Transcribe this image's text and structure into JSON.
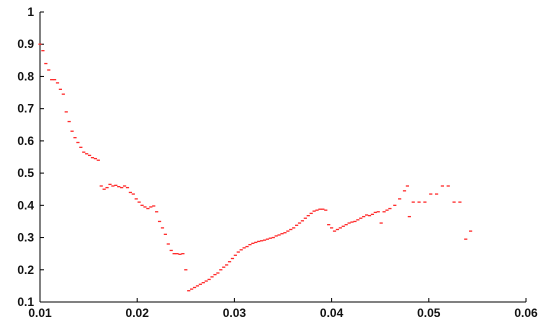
{
  "chart_data": {
    "type": "scatter",
    "title": "",
    "xlabel": "",
    "ylabel": "",
    "xlim": [
      0.01,
      0.06
    ],
    "ylim": [
      0.1,
      1.0
    ],
    "x_ticks": [
      0.01,
      0.02,
      0.03,
      0.04,
      0.05,
      0.06
    ],
    "x_tick_labels": [
      "0.01",
      "0.02",
      "0.03",
      "0.04",
      "0.05",
      "0.06"
    ],
    "y_ticks": [
      0.1,
      0.2,
      0.3,
      0.4,
      0.5,
      0.6,
      0.7,
      0.8,
      0.9,
      1.0
    ],
    "y_tick_labels": [
      "0.1",
      "0.2",
      "0.3",
      "0.4",
      "0.5",
      "0.6",
      "0.7",
      "0.8",
      "0.9",
      "1"
    ],
    "grid": false,
    "legend": "none",
    "series": [
      {
        "color": "#ff2a2a",
        "marker": "dash",
        "points": [
          [
            0.01,
            0.9
          ],
          [
            0.0103,
            0.88
          ],
          [
            0.0106,
            0.84
          ],
          [
            0.0109,
            0.82
          ],
          [
            0.0112,
            0.79
          ],
          [
            0.0115,
            0.79
          ],
          [
            0.0118,
            0.78
          ],
          [
            0.0121,
            0.76
          ],
          [
            0.0124,
            0.745
          ],
          [
            0.0127,
            0.69
          ],
          [
            0.013,
            0.66
          ],
          [
            0.0133,
            0.63
          ],
          [
            0.0136,
            0.61
          ],
          [
            0.0139,
            0.595
          ],
          [
            0.0142,
            0.58
          ],
          [
            0.0145,
            0.565
          ],
          [
            0.0148,
            0.56
          ],
          [
            0.0151,
            0.555
          ],
          [
            0.0154,
            0.548
          ],
          [
            0.0157,
            0.545
          ],
          [
            0.016,
            0.54
          ],
          [
            0.0163,
            0.46
          ],
          [
            0.0166,
            0.45
          ],
          [
            0.0169,
            0.455
          ],
          [
            0.0172,
            0.465
          ],
          [
            0.0175,
            0.46
          ],
          [
            0.0178,
            0.462
          ],
          [
            0.0181,
            0.458
          ],
          [
            0.0184,
            0.455
          ],
          [
            0.0187,
            0.46
          ],
          [
            0.019,
            0.455
          ],
          [
            0.0193,
            0.44
          ],
          [
            0.0196,
            0.435
          ],
          [
            0.0199,
            0.42
          ],
          [
            0.0202,
            0.41
          ],
          [
            0.0205,
            0.4
          ],
          [
            0.0208,
            0.395
          ],
          [
            0.0211,
            0.39
          ],
          [
            0.0214,
            0.395
          ],
          [
            0.0217,
            0.398
          ],
          [
            0.022,
            0.38
          ],
          [
            0.0223,
            0.35
          ],
          [
            0.0226,
            0.33
          ],
          [
            0.0229,
            0.31
          ],
          [
            0.0232,
            0.28
          ],
          [
            0.0235,
            0.26
          ],
          [
            0.0238,
            0.25
          ],
          [
            0.0241,
            0.25
          ],
          [
            0.0244,
            0.248
          ],
          [
            0.0247,
            0.25
          ],
          [
            0.025,
            0.2
          ],
          [
            0.0253,
            0.135
          ],
          [
            0.0256,
            0.14
          ],
          [
            0.0259,
            0.145
          ],
          [
            0.0262,
            0.15
          ],
          [
            0.0265,
            0.155
          ],
          [
            0.0268,
            0.16
          ],
          [
            0.0271,
            0.165
          ],
          [
            0.0274,
            0.17
          ],
          [
            0.0277,
            0.178
          ],
          [
            0.028,
            0.185
          ],
          [
            0.0283,
            0.19
          ],
          [
            0.0286,
            0.2
          ],
          [
            0.0289,
            0.208
          ],
          [
            0.0292,
            0.215
          ],
          [
            0.0295,
            0.225
          ],
          [
            0.0298,
            0.235
          ],
          [
            0.0301,
            0.245
          ],
          [
            0.0304,
            0.255
          ],
          [
            0.0307,
            0.262
          ],
          [
            0.031,
            0.268
          ],
          [
            0.0313,
            0.272
          ],
          [
            0.0316,
            0.278
          ],
          [
            0.0319,
            0.282
          ],
          [
            0.0322,
            0.285
          ],
          [
            0.0325,
            0.288
          ],
          [
            0.0328,
            0.29
          ],
          [
            0.0331,
            0.292
          ],
          [
            0.0334,
            0.295
          ],
          [
            0.0337,
            0.298
          ],
          [
            0.034,
            0.3
          ],
          [
            0.0343,
            0.305
          ],
          [
            0.0346,
            0.308
          ],
          [
            0.0349,
            0.312
          ],
          [
            0.0352,
            0.315
          ],
          [
            0.0355,
            0.32
          ],
          [
            0.0358,
            0.325
          ],
          [
            0.0361,
            0.33
          ],
          [
            0.0364,
            0.338
          ],
          [
            0.0367,
            0.345
          ],
          [
            0.037,
            0.352
          ],
          [
            0.0373,
            0.36
          ],
          [
            0.0376,
            0.368
          ],
          [
            0.0379,
            0.375
          ],
          [
            0.0382,
            0.382
          ],
          [
            0.0385,
            0.385
          ],
          [
            0.0388,
            0.388
          ],
          [
            0.0391,
            0.388
          ],
          [
            0.0394,
            0.385
          ],
          [
            0.0397,
            0.34
          ],
          [
            0.04,
            0.33
          ],
          [
            0.0403,
            0.32
          ],
          [
            0.0406,
            0.325
          ],
          [
            0.0409,
            0.33
          ],
          [
            0.0412,
            0.335
          ],
          [
            0.0415,
            0.34
          ],
          [
            0.0418,
            0.345
          ],
          [
            0.0421,
            0.348
          ],
          [
            0.0424,
            0.35
          ],
          [
            0.0427,
            0.355
          ],
          [
            0.043,
            0.36
          ],
          [
            0.0433,
            0.365
          ],
          [
            0.0436,
            0.37
          ],
          [
            0.0439,
            0.368
          ],
          [
            0.0442,
            0.372
          ],
          [
            0.0445,
            0.378
          ],
          [
            0.0448,
            0.38
          ],
          [
            0.0451,
            0.345
          ],
          [
            0.0454,
            0.38
          ],
          [
            0.0457,
            0.385
          ],
          [
            0.046,
            0.39
          ],
          [
            0.0465,
            0.4
          ],
          [
            0.047,
            0.42
          ],
          [
            0.0475,
            0.445
          ],
          [
            0.0478,
            0.46
          ],
          [
            0.048,
            0.365
          ],
          [
            0.0484,
            0.41
          ],
          [
            0.049,
            0.41
          ],
          [
            0.0496,
            0.41
          ],
          [
            0.0502,
            0.435
          ],
          [
            0.0508,
            0.435
          ],
          [
            0.0514,
            0.46
          ],
          [
            0.052,
            0.46
          ],
          [
            0.0526,
            0.41
          ],
          [
            0.0532,
            0.41
          ],
          [
            0.0538,
            0.295
          ],
          [
            0.0543,
            0.32
          ]
        ]
      }
    ]
  }
}
